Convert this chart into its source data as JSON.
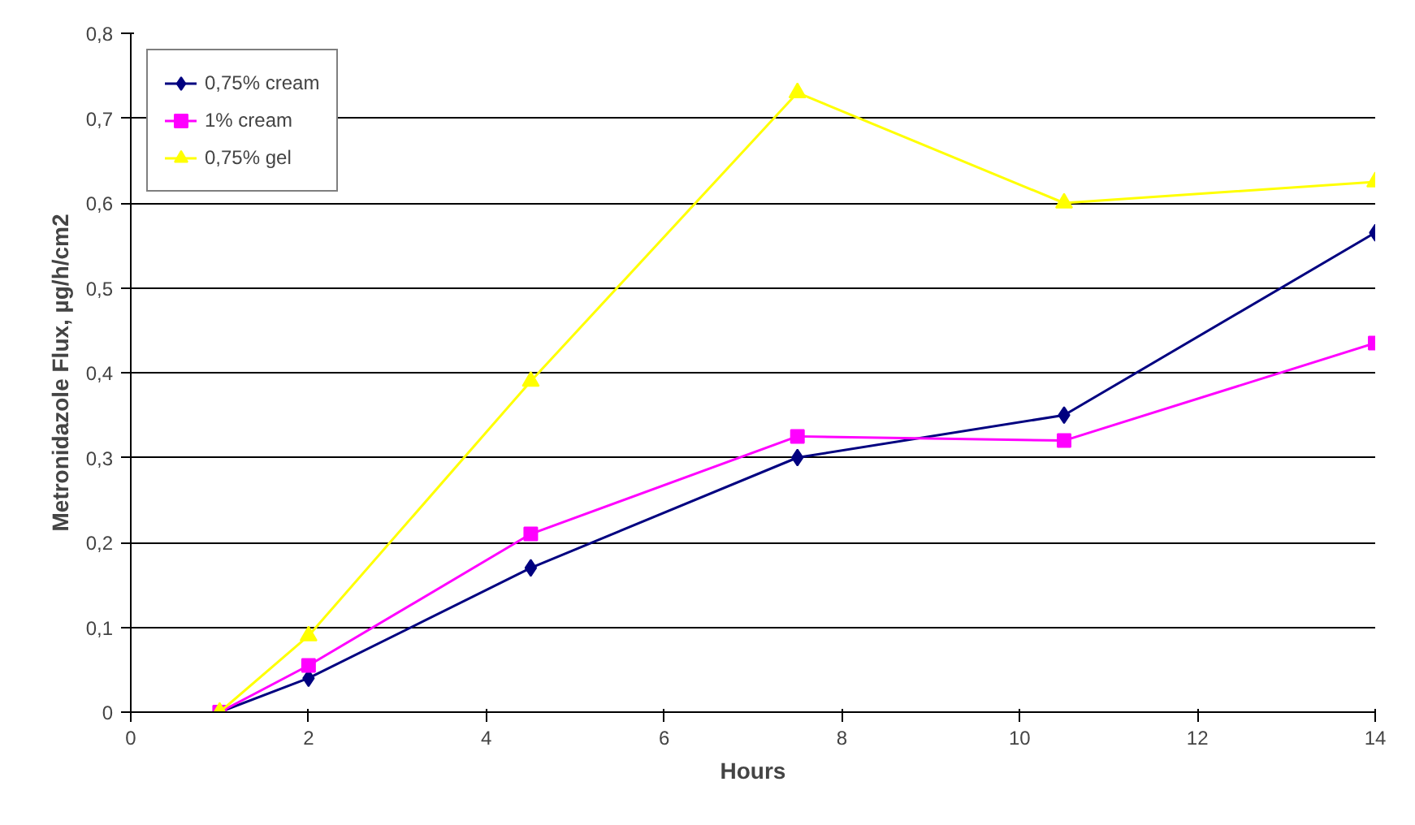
{
  "chart_data": {
    "type": "line",
    "xlabel": "Hours",
    "ylabel": "Metronidazole Flux, µg/h/cm2",
    "x": [
      1,
      2,
      4.5,
      7.5,
      10.5,
      14
    ],
    "series": [
      {
        "name": "0,75% cream",
        "color": "#000080",
        "marker": "diamond",
        "values": [
          0,
          0.04,
          0.17,
          0.3,
          0.35,
          0.565
        ]
      },
      {
        "name": "1% cream",
        "color": "#ff00ff",
        "marker": "square",
        "values": [
          0,
          0.055,
          0.21,
          0.325,
          0.32,
          0.435
        ]
      },
      {
        "name": "0,75% gel",
        "color": "#ffff00",
        "marker": "triangle",
        "values": [
          0,
          0.09,
          0.39,
          0.73,
          0.6,
          0.625
        ]
      }
    ],
    "xlim": [
      0,
      14
    ],
    "xticks": [
      0,
      2,
      4,
      6,
      8,
      10,
      12,
      14
    ],
    "ylim": [
      0,
      0.8
    ],
    "yticks": [
      {
        "value": 0,
        "label": "0"
      },
      {
        "value": 0.1,
        "label": "0,1"
      },
      {
        "value": 0.2,
        "label": "0,2"
      },
      {
        "value": 0.3,
        "label": "0,3"
      },
      {
        "value": 0.4,
        "label": "0,4"
      },
      {
        "value": 0.5,
        "label": "0,5"
      },
      {
        "value": 0.6,
        "label": "0,6"
      },
      {
        "value": 0.7,
        "label": "0,7"
      },
      {
        "value": 0.8,
        "label": "0,8"
      }
    ],
    "grid": "y",
    "legend": "top left"
  }
}
